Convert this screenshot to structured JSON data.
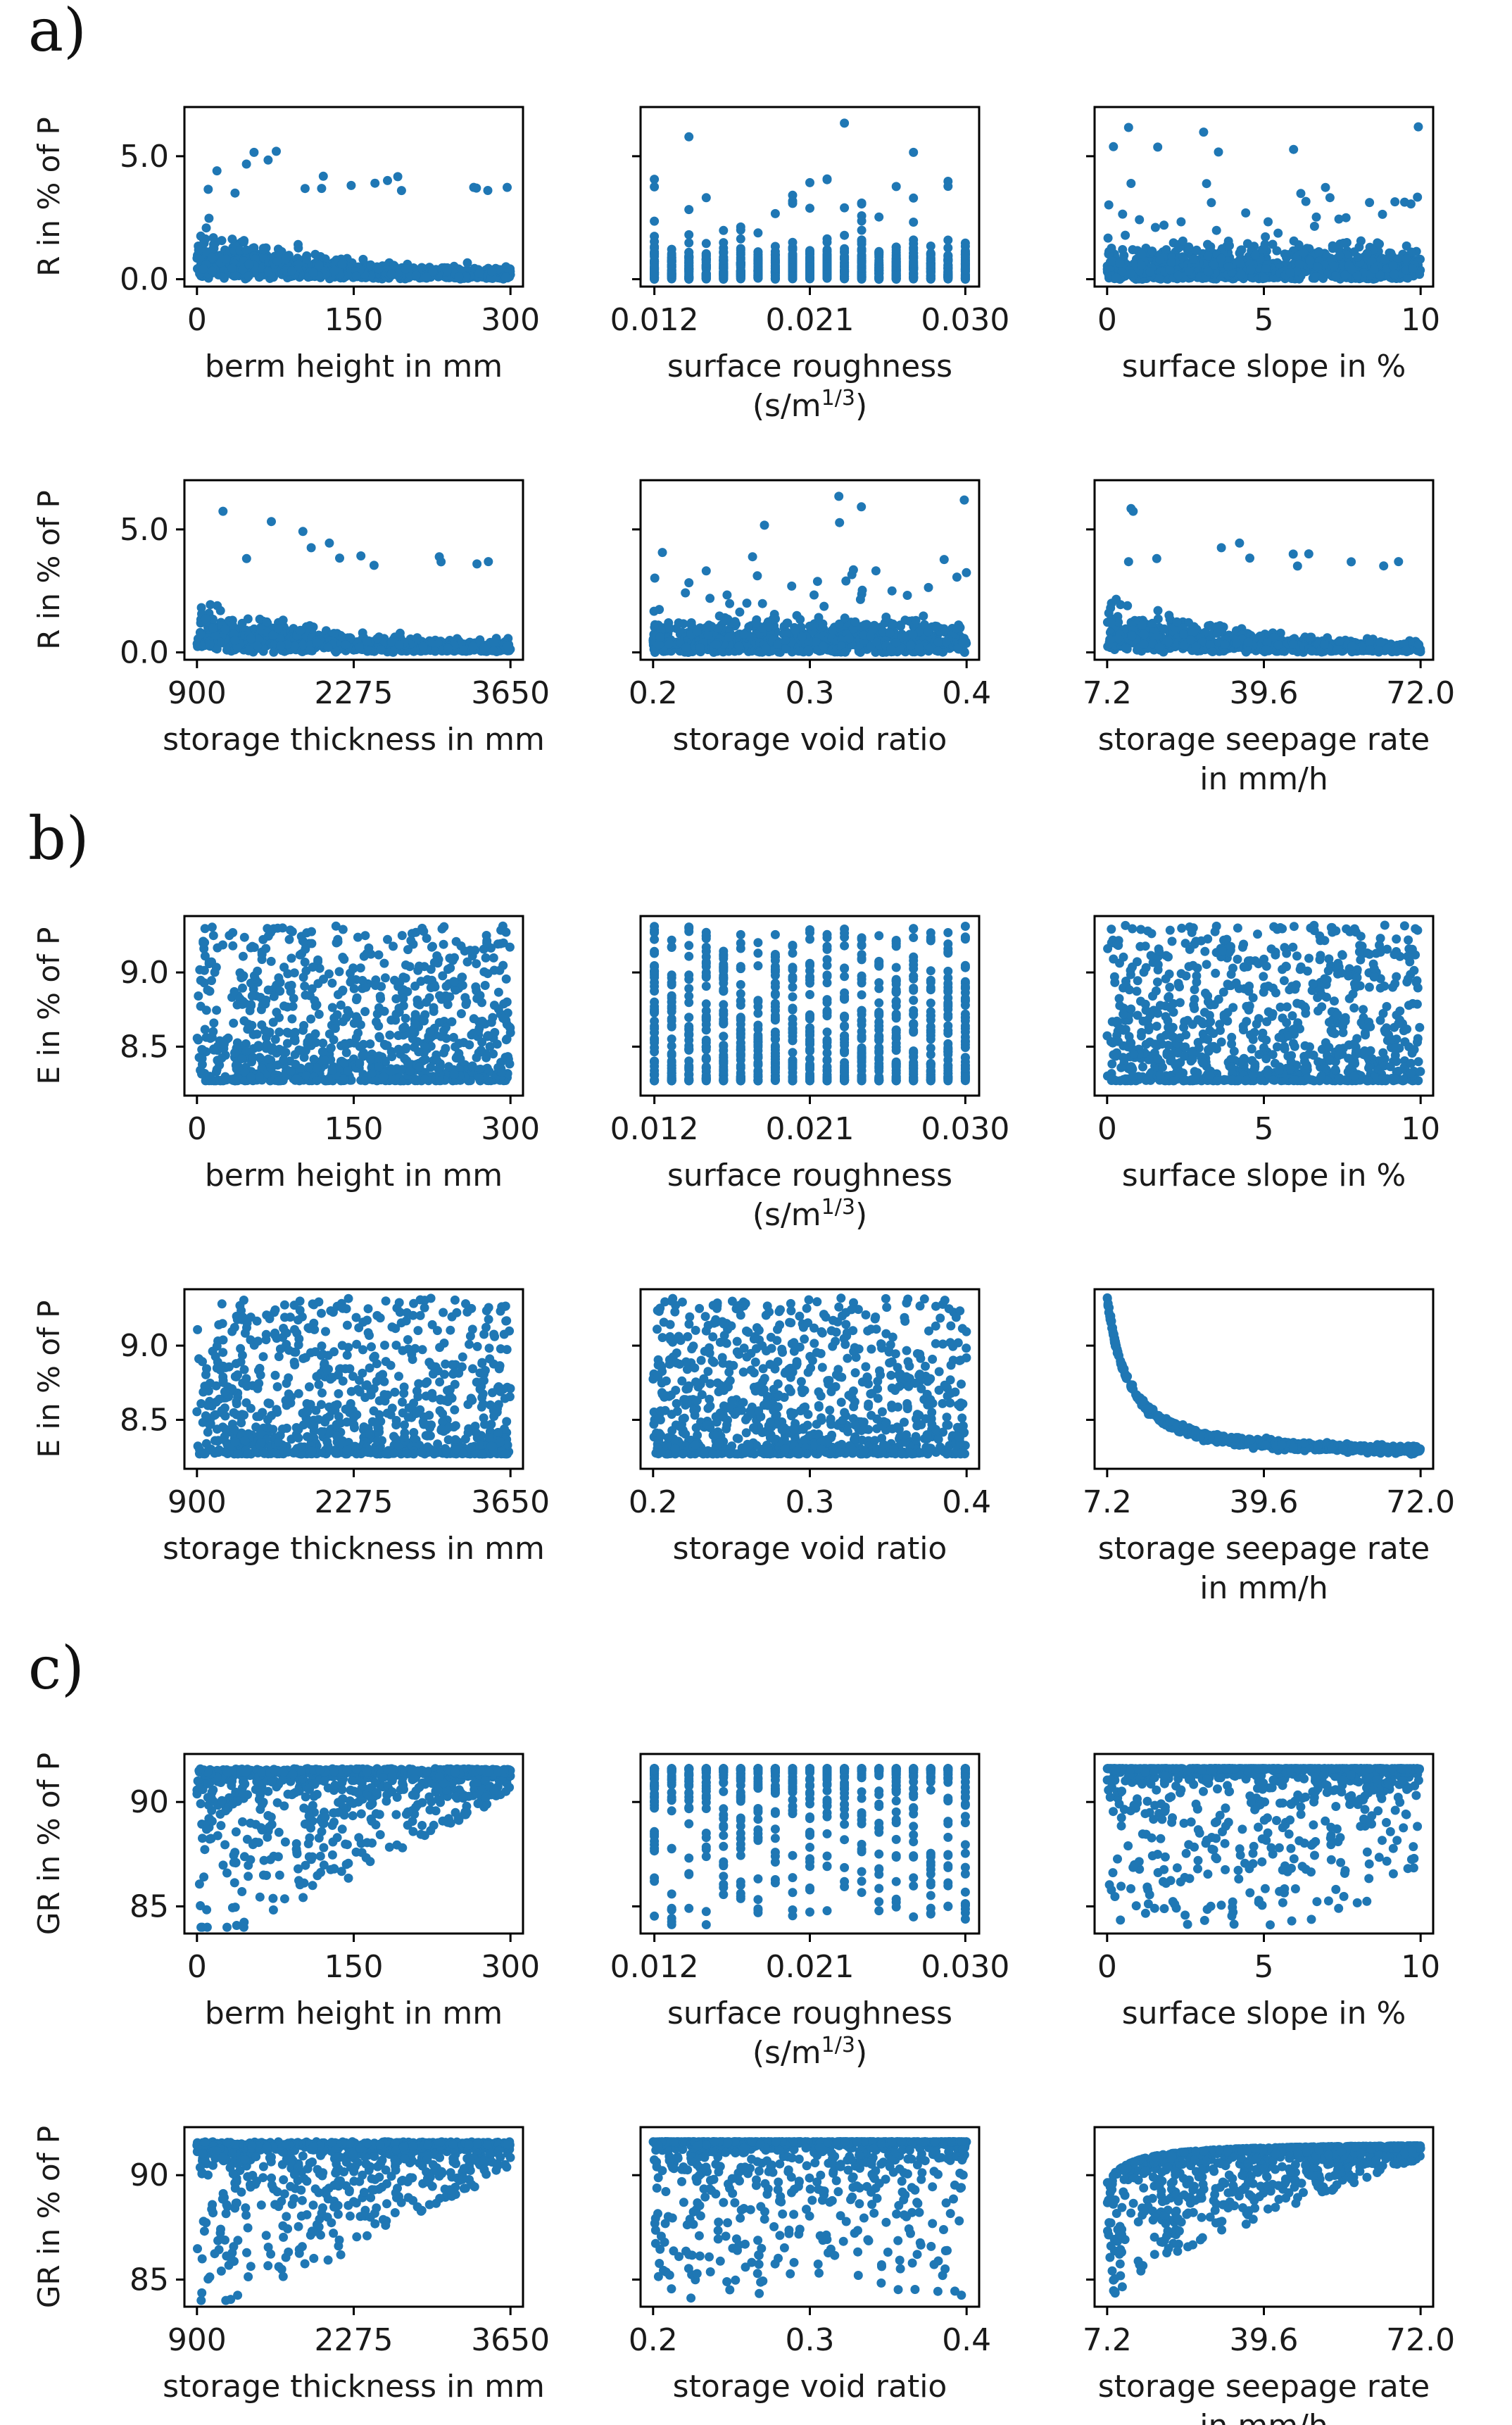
{
  "figure": {
    "color": "#1f77b4",
    "sections": [
      {
        "label": "a)",
        "ylabel": "R in % of P",
        "yticks": [
          "0.0",
          "5.0"
        ],
        "yvalues": [
          0.0,
          5.0
        ],
        "ylim": [
          -0.3,
          7.0
        ],
        "var": "R"
      },
      {
        "label": "b)",
        "ylabel": "E in % of P",
        "yticks": [
          "8.5",
          "9.0"
        ],
        "yvalues": [
          8.5,
          9.0
        ],
        "ylim": [
          8.17,
          9.38
        ],
        "var": "E"
      },
      {
        "label": "c)",
        "ylabel": "GR in % of P",
        "yticks": [
          "85",
          "90"
        ],
        "yvalues": [
          85,
          90
        ],
        "ylim": [
          83.7,
          92.3
        ],
        "var": "GR"
      }
    ],
    "panels_x": [
      {
        "xlabel": [
          "berm height in mm"
        ],
        "xticks": [
          "0",
          "150",
          "300"
        ],
        "xvalues": [
          0,
          150,
          300
        ],
        "xlim": [
          -12,
          312
        ],
        "discrete": false
      },
      {
        "xlabel": [
          "surface roughness",
          "(s/m^{1/3})"
        ],
        "xticks": [
          "0.012",
          "0.021",
          "0.030"
        ],
        "xvalues": [
          0.012,
          0.021,
          0.03
        ],
        "xlim": [
          0.0112,
          0.0308
        ],
        "discrete": true
      },
      {
        "xlabel": [
          "surface slope in %"
        ],
        "xticks": [
          "0",
          "5",
          "10"
        ],
        "xvalues": [
          0,
          5,
          10
        ],
        "xlim": [
          -0.4,
          10.4
        ],
        "discrete": false
      },
      {
        "xlabel": [
          "storage thickness in mm"
        ],
        "xticks": [
          "900",
          "2275",
          "3650"
        ],
        "xvalues": [
          900,
          2275,
          3650
        ],
        "xlim": [
          790,
          3760
        ],
        "discrete": false
      },
      {
        "xlabel": [
          "storage void ratio"
        ],
        "xticks": [
          "0.2",
          "0.3",
          "0.4"
        ],
        "xvalues": [
          0.2,
          0.3,
          0.4
        ],
        "xlim": [
          0.192,
          0.408
        ],
        "discrete": false
      },
      {
        "xlabel": [
          "storage seepage rate",
          "in mm/h"
        ],
        "xticks": [
          "7.2",
          "39.6",
          "72.0"
        ],
        "xvalues": [
          7.2,
          39.6,
          72.0
        ],
        "xlim": [
          4.6,
          74.6
        ],
        "discrete": false
      }
    ]
  },
  "chart_data": {
    "type": "scatter",
    "description_of_data": "Parameter sensitivity scatter plots; each panel plots a water balance component against one parameter.",
    "series_style": {
      "color": "#1f77b4",
      "marker": "circle"
    },
    "sampling": {
      "n_points_per_panel": 900,
      "seed": 12345
    }
  }
}
